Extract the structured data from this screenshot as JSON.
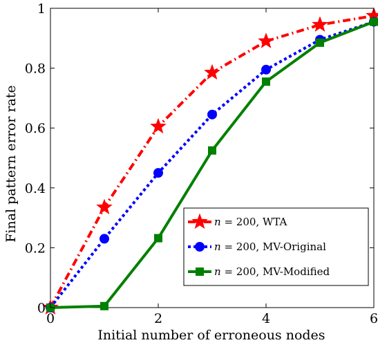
{
  "chart_data": {
    "type": "line",
    "xlabel": "Initial number of erroneous nodes",
    "ylabel": "Final pattern error rate",
    "xlim": [
      0,
      6
    ],
    "ylim": [
      0,
      1
    ],
    "xticks": [
      "0",
      "2",
      "4",
      "6"
    ],
    "yticks": [
      "0",
      "0.2",
      "0.4",
      "0.6",
      "0.8",
      "1"
    ],
    "grid": false,
    "legend_position": "bottom-right",
    "series": [
      {
        "name": "n = 200, WTA",
        "legend_math": "n",
        "legend_rest": " = 200, WTA",
        "color": "#ff0000",
        "marker": "star",
        "line_style": "dash-dot",
        "x": [
          0,
          1,
          2,
          3,
          4,
          5,
          6
        ],
        "y": [
          0.0,
          0.335,
          0.605,
          0.785,
          0.89,
          0.945,
          0.975
        ]
      },
      {
        "name": "n = 200, MV-Original",
        "legend_math": "n",
        "legend_rest": " = 200, MV-Original",
        "color": "#0000ff",
        "marker": "circle",
        "line_style": "dotted",
        "x": [
          0,
          1,
          2,
          3,
          4,
          5,
          6
        ],
        "y": [
          0.0,
          0.23,
          0.45,
          0.645,
          0.795,
          0.895,
          0.955
        ]
      },
      {
        "name": "n = 200, MV-Modified",
        "legend_math": "n",
        "legend_rest": " = 200, MV-Modified",
        "color": "#008000",
        "marker": "square",
        "line_style": "solid",
        "x": [
          0,
          1,
          2,
          3,
          4,
          5,
          6
        ],
        "y": [
          0.0,
          0.005,
          0.232,
          0.525,
          0.755,
          0.885,
          0.955
        ]
      }
    ]
  }
}
